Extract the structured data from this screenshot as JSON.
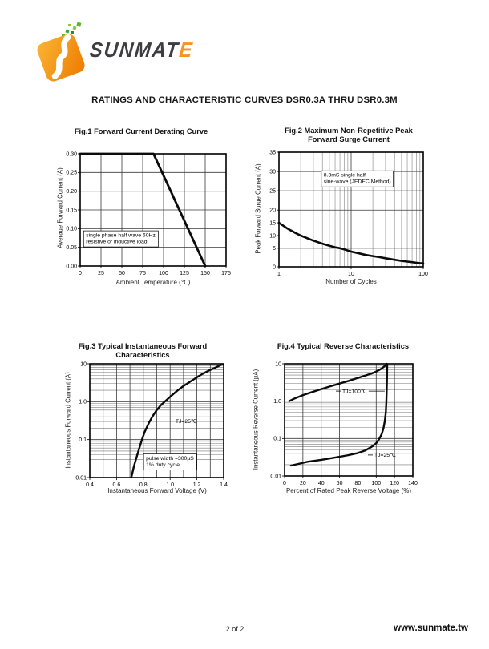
{
  "page": {
    "doc_title": "RATINGS AND CHARACTERISTIC CURVES DSR0.3A THRU DSR0.3M",
    "logo": {
      "brand_main": "SUNMAT",
      "brand_accent": "E",
      "accent_color": "#f7941d",
      "icon_orange": "#f08a00",
      "icon_green": "#5cb531"
    },
    "footer": {
      "page_indicator": "2 of 2",
      "website": "www.sunmate.tw"
    }
  },
  "chart_data": [
    {
      "id": "fig1",
      "type": "line",
      "title_lines": [
        "Fig.1 Forward Current Derating Curve"
      ],
      "xlabel": "Ambient Temperature (℃)",
      "ylabel": "Average Forward Current (A)",
      "x_axis": {
        "type": "linear",
        "min": 0,
        "max": 175,
        "grid": [
          25,
          50,
          75,
          100,
          125,
          150
        ],
        "ticks": [
          0,
          25,
          50,
          75,
          100,
          125,
          150,
          175
        ],
        "tick_labels": [
          "0",
          "25",
          "50",
          "75",
          "100",
          "125",
          "150",
          "175"
        ]
      },
      "y_axis": {
        "type": "linear",
        "min": 0,
        "max": 0.3,
        "grid": [
          0.05,
          0.1,
          0.15,
          0.2,
          0.25
        ],
        "ticks": [
          0,
          0.05,
          0.1,
          0.15,
          0.2,
          0.25,
          0.3
        ],
        "tick_labels": [
          "0.00",
          "0.05",
          "0.10",
          "0.15",
          "0.20",
          "0.25",
          "0.30"
        ]
      },
      "series": [
        {
          "name": "forward current derating",
          "stroke_width": 2.8,
          "points": [
            [
              0,
              0.3
            ],
            [
              88,
              0.3
            ],
            [
              150,
              0
            ]
          ]
        }
      ],
      "annotations": [
        {
          "lines": [
            "single phase half wave 60Hz",
            "resistive or inductive load"
          ],
          "fx": 0.04,
          "fy": 0.74,
          "boxed": true
        }
      ]
    },
    {
      "id": "fig2",
      "type": "line",
      "title_lines": [
        "Fig.2 Maximum Non-Repetitive Peak",
        "Forward Surge Current"
      ],
      "xlabel": "Number of Cycles",
      "ylabel": "Peak Forward Surge Current (A)",
      "x_axis": {
        "type": "log",
        "min": 1,
        "max": 100,
        "grid": [
          10
        ],
        "grid_minor": [
          2,
          3,
          4,
          5,
          6,
          7,
          8,
          9,
          20,
          30,
          40,
          50,
          60,
          70,
          80,
          90
        ],
        "ticks": [
          1,
          10,
          100
        ],
        "tick_labels": [
          "1",
          "10",
          "100"
        ]
      },
      "y_axis": {
        "type": "stops",
        "stops": [
          {
            "v": 0,
            "f": 0
          },
          {
            "v": 5,
            "f": 0.162
          },
          {
            "v": 20,
            "f": 0.495
          },
          {
            "v": 35,
            "f": 1
          }
        ],
        "grid": [
          5,
          20,
          25,
          30
        ],
        "ticks": [
          0,
          5,
          10,
          15,
          20,
          25,
          30,
          35
        ],
        "tick_labels": [
          "0",
          "5",
          "10",
          "15",
          "20",
          "25",
          "30",
          "35"
        ]
      },
      "series": [
        {
          "name": "peak forward surge current",
          "stroke_width": 2.6,
          "points": [
            [
              1,
              15
            ],
            [
              1.3,
              12.8
            ],
            [
              1.7,
              11
            ],
            [
              2,
              10
            ],
            [
              2.5,
              8.9
            ],
            [
              3,
              8
            ],
            [
              4,
              6.8
            ],
            [
              5,
              6
            ],
            [
              6,
              5.4
            ],
            [
              7,
              5
            ],
            [
              8,
              4.7
            ],
            [
              10,
              4.1
            ],
            [
              13,
              3.6
            ],
            [
              16,
              3.2
            ],
            [
              20,
              2.9
            ],
            [
              25,
              2.6
            ],
            [
              30,
              2.3
            ],
            [
              40,
              1.9
            ],
            [
              50,
              1.6
            ],
            [
              60,
              1.4
            ],
            [
              70,
              1.25
            ],
            [
              80,
              1.1
            ],
            [
              90,
              1.0
            ],
            [
              100,
              0.92
            ]
          ]
        }
      ],
      "annotations": [
        {
          "lines": [
            "8.3mS single half",
            "sine-wave (JEDEC Method)"
          ],
          "fx": 0.31,
          "fy": 0.215,
          "boxed": true
        }
      ]
    },
    {
      "id": "fig3",
      "type": "line",
      "title_lines": [
        "Fig.3 Typical Instantaneous Forward",
        "Characteristics"
      ],
      "xlabel": "Instantaneous Forward Voltage (V)",
      "ylabel": "Instantaneous Forward Current (A)",
      "x_axis": {
        "type": "linear",
        "min": 0.4,
        "max": 1.4,
        "grid": [
          0.5,
          0.6,
          0.7,
          0.8,
          0.9,
          1.0,
          1.1,
          1.2,
          1.3
        ],
        "ticks": [
          0.4,
          0.6,
          0.8,
          1.0,
          1.2,
          1.4
        ],
        "tick_labels": [
          "0.4",
          "0.6",
          "0.8",
          "1.0",
          "1.2",
          "1.4"
        ]
      },
      "y_axis": {
        "type": "log",
        "min": 0.01,
        "max": 10,
        "grid": [
          0.1,
          1
        ],
        "grid_minor": [
          0.02,
          0.03,
          0.04,
          0.05,
          0.06,
          0.07,
          0.08,
          0.09,
          0.2,
          0.3,
          0.4,
          0.5,
          0.6,
          0.7,
          0.8,
          0.9,
          2,
          3,
          4,
          5,
          6,
          7,
          8,
          9
        ],
        "ticks": [
          0.01,
          0.1,
          1,
          10
        ],
        "tick_labels": [
          "0.01",
          "0.1",
          "1.0",
          "10"
        ]
      },
      "series": [
        {
          "name": "forward characteristic TJ=25℃",
          "stroke_width": 2.4,
          "points": [
            [
              0.71,
              0.01
            ],
            [
              0.73,
              0.02
            ],
            [
              0.75,
              0.035
            ],
            [
              0.77,
              0.06
            ],
            [
              0.79,
              0.1
            ],
            [
              0.81,
              0.16
            ],
            [
              0.84,
              0.27
            ],
            [
              0.87,
              0.42
            ],
            [
              0.9,
              0.6
            ],
            [
              0.93,
              0.8
            ],
            [
              0.96,
              1.0
            ],
            [
              1.0,
              1.35
            ],
            [
              1.05,
              1.9
            ],
            [
              1.1,
              2.6
            ],
            [
              1.15,
              3.4
            ],
            [
              1.2,
              4.4
            ],
            [
              1.25,
              5.6
            ],
            [
              1.3,
              6.9
            ],
            [
              1.35,
              8.3
            ],
            [
              1.39,
              9.7
            ]
          ]
        }
      ],
      "annotations": [
        {
          "lines": [
            "TJ=25℃"
          ],
          "fx": 0.64,
          "fy": 0.52,
          "dash_after": 8
        },
        {
          "lines": [
            "pulse width =300µS",
            "1% duty cycle"
          ],
          "fx": 0.42,
          "fy": 0.845,
          "boxed": true
        }
      ]
    },
    {
      "id": "fig4",
      "type": "line",
      "title_lines": [
        "Fig.4 Typical Reverse Characteristics"
      ],
      "xlabel": "Percent of Rated Peak Reverse Voltage (%)",
      "ylabel": "Instantaneous Reverse Current (µA)",
      "x_axis": {
        "type": "linear",
        "min": 0,
        "max": 140,
        "grid": [
          20,
          40,
          60,
          80,
          100,
          120
        ],
        "ticks": [
          0,
          20,
          40,
          60,
          80,
          100,
          120,
          140
        ],
        "tick_labels": [
          "0",
          "20",
          "40",
          "60",
          "80",
          "100",
          "120",
          "140"
        ]
      },
      "y_axis": {
        "type": "log",
        "min": 0.01,
        "max": 10,
        "grid": [
          0.1,
          1
        ],
        "grid_minor": [
          0.02,
          0.03,
          0.04,
          0.05,
          0.06,
          0.07,
          0.08,
          0.09,
          0.2,
          0.3,
          0.4,
          0.5,
          0.6,
          0.7,
          0.8,
          0.9,
          2,
          3,
          4,
          5,
          6,
          7,
          8,
          9
        ],
        "ticks": [
          0.01,
          0.1,
          1,
          10
        ],
        "tick_labels": [
          "0.01",
          "0.1",
          "1.0",
          "10"
        ]
      },
      "series": [
        {
          "name": "reverse current TJ=100℃",
          "stroke_width": 2.4,
          "points": [
            [
              5,
              1.0
            ],
            [
              10,
              1.15
            ],
            [
              20,
              1.45
            ],
            [
              30,
              1.75
            ],
            [
              40,
              2.1
            ],
            [
              50,
              2.5
            ],
            [
              60,
              2.95
            ],
            [
              70,
              3.5
            ],
            [
              80,
              4.2
            ],
            [
              90,
              5.0
            ],
            [
              95,
              5.5
            ],
            [
              100,
              6.2
            ],
            [
              104,
              7.0
            ],
            [
              107,
              7.8
            ],
            [
              109,
              8.6
            ],
            [
              110.5,
              9.3
            ],
            [
              111.5,
              10
            ]
          ]
        },
        {
          "name": "reverse current TJ=25℃",
          "stroke_width": 2.4,
          "points": [
            [
              7,
              0.019
            ],
            [
              15,
              0.021
            ],
            [
              25,
              0.024
            ],
            [
              40,
              0.027
            ],
            [
              55,
              0.031
            ],
            [
              70,
              0.036
            ],
            [
              80,
              0.041
            ],
            [
              88,
              0.048
            ],
            [
              95,
              0.06
            ],
            [
              100,
              0.075
            ],
            [
              103,
              0.095
            ],
            [
              106,
              0.13
            ],
            [
              108,
              0.19
            ],
            [
              109.5,
              0.3
            ],
            [
              110.5,
              0.5
            ],
            [
              111,
              0.9
            ],
            [
              111.5,
              2.0
            ],
            [
              111.8,
              4.5
            ],
            [
              112,
              9.8
            ]
          ]
        }
      ],
      "annotations": [
        {
          "lines": [
            "TJ=100℃"
          ],
          "fx": 0.45,
          "fy": 0.26,
          "dash_before": 6,
          "dash_after": 20
        },
        {
          "lines": [
            "TJ=25℃"
          ],
          "fx": 0.7,
          "fy": 0.83,
          "dash_before": 6
        }
      ]
    }
  ]
}
